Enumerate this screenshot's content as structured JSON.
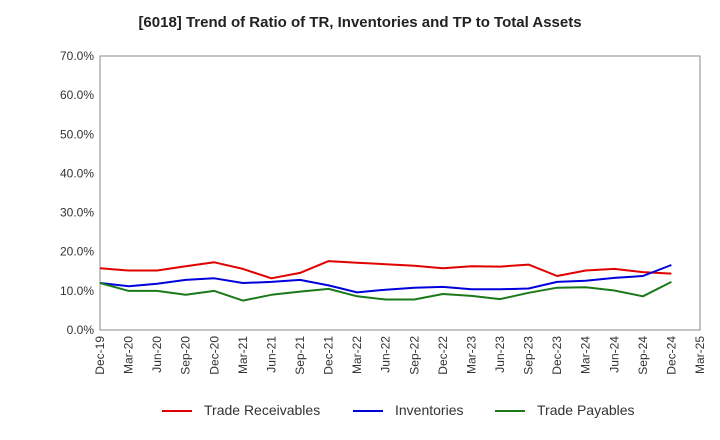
{
  "chart_data": {
    "type": "line",
    "title": "[6018]  Trend of Ratio of TR, Inventories and TP to Total Assets",
    "xlabel": "",
    "ylabel": "",
    "x": [
      "Dec-19",
      "Mar-20",
      "Jun-20",
      "Sep-20",
      "Dec-20",
      "Mar-21",
      "Jun-21",
      "Sep-21",
      "Dec-21",
      "Mar-22",
      "Jun-22",
      "Sep-22",
      "Dec-22",
      "Mar-23",
      "Jun-23",
      "Sep-23",
      "Dec-23",
      "Mar-24",
      "Jun-24",
      "Sep-24",
      "Dec-24",
      "Mar-25"
    ],
    "y_ticks": [
      "0.0%",
      "10.0%",
      "20.0%",
      "30.0%",
      "40.0%",
      "50.0%",
      "60.0%",
      "70.0%"
    ],
    "ylim": [
      0,
      70
    ],
    "grid": true,
    "legend_position": "bottom",
    "series": [
      {
        "name": "Trade Receivables",
        "color": "#e00000",
        "values": [
          15.8,
          15.2,
          15.2,
          16.3,
          17.3,
          15.6,
          13.2,
          14.6,
          17.6,
          17.2,
          16.8,
          16.4,
          15.8,
          16.3,
          16.2,
          16.7,
          13.8,
          15.2,
          15.6,
          14.8,
          14.4,
          null
        ]
      },
      {
        "name": "Inventories",
        "color": "#0000dd",
        "values": [
          12.0,
          11.2,
          11.8,
          12.8,
          13.2,
          12.0,
          12.3,
          12.8,
          11.4,
          9.6,
          10.3,
          10.8,
          11.0,
          10.4,
          10.4,
          10.6,
          12.3,
          12.6,
          13.3,
          13.8,
          16.6,
          null
        ]
      },
      {
        "name": "Trade Payables",
        "color": "#1a7a1a",
        "values": [
          12.0,
          10.0,
          10.0,
          9.0,
          10.0,
          7.5,
          9.0,
          9.8,
          10.5,
          8.6,
          7.8,
          7.8,
          9.2,
          8.7,
          7.9,
          9.5,
          10.8,
          10.9,
          10.1,
          8.6,
          12.3,
          null
        ]
      }
    ]
  }
}
